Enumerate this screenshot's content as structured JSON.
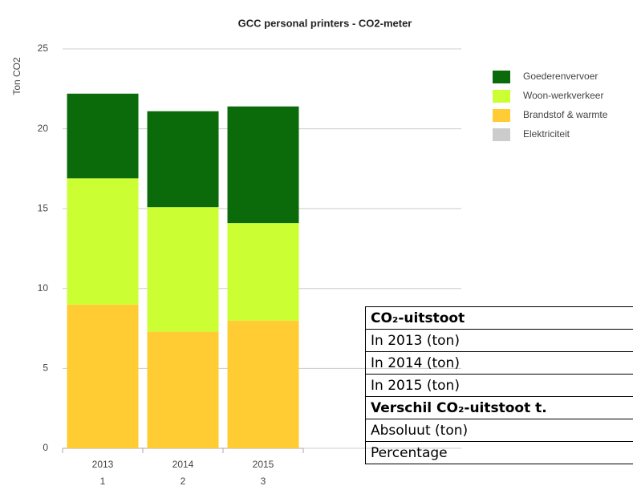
{
  "chart_data": {
    "type": "stacked_bar",
    "title": "GCC personal printers - CO2-meter",
    "y_label": "Ton CO2",
    "categories": [
      "2013",
      "2014",
      "2015"
    ],
    "category_sublabels": [
      "1",
      "2",
      "3"
    ],
    "series": [
      {
        "name": "Goederenvervoer",
        "color": "#0b6b0b",
        "values": [
          5.3,
          6.0,
          7.3
        ]
      },
      {
        "name": "Woon-werkverkeer",
        "color": "#ccff33",
        "values": [
          7.9,
          7.8,
          6.1
        ]
      },
      {
        "name": "Brandstof & warmte",
        "color": "#ffcc33",
        "values": [
          9.0,
          7.3,
          8.0
        ]
      },
      {
        "name": "Elektriciteit",
        "color": "#cccccc",
        "values": [
          0,
          0,
          0
        ]
      }
    ],
    "ylim": [
      0,
      25
    ],
    "yticks": [
      0,
      5,
      10,
      15,
      20,
      25
    ],
    "grid": true,
    "legend": "right"
  },
  "table": {
    "rows": [
      "CO₂-uitstoot",
      "In 2013 (ton)",
      "In 2014 (ton)",
      "In 2015 (ton)",
      "Verschil CO₂-uitstoot t.",
      "Absoluut (ton)",
      "Percentage"
    ],
    "bold_rows": [
      0,
      4
    ]
  }
}
